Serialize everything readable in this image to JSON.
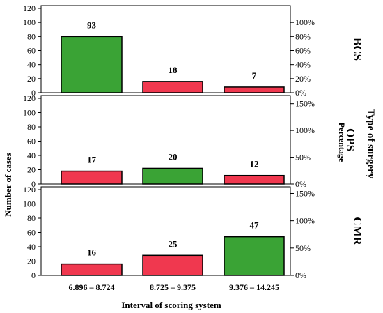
{
  "chart_data": {
    "type": "bar",
    "xlabel": "Interval of scoring system",
    "ylabel": "Number of cases",
    "y2label": "Percentage",
    "facet_label": "Type of surgery",
    "categories": [
      "6.896 – 8.724",
      "8.725 – 9.375",
      "9.376 – 14.245"
    ],
    "ylim": [
      0,
      120
    ],
    "yticks": [
      "0",
      "20",
      "40",
      "60",
      "80",
      "100",
      "120"
    ],
    "colors": {
      "highest": "#3aa335",
      "other": "#f0384f"
    },
    "panels": [
      {
        "name": "BCS",
        "values": [
          93,
          18,
          7
        ],
        "bar_values": [
          80,
          16,
          8
        ],
        "highlight": [
          true,
          false,
          false
        ],
        "y2ticks": [
          "0%",
          "20%",
          "40%",
          "60%",
          "80%",
          "100%"
        ],
        "y2max_pct": 120
      },
      {
        "name": "OPS",
        "values": [
          17,
          20,
          12
        ],
        "bar_values": [
          18,
          22,
          12
        ],
        "highlight": [
          false,
          true,
          false
        ],
        "y2ticks": [
          "0%",
          "50%",
          "100%",
          "150%"
        ],
        "y2max_pct": 160
      },
      {
        "name": "CMR",
        "values": [
          16,
          25,
          47
        ],
        "bar_values": [
          16,
          28,
          54
        ],
        "highlight": [
          false,
          false,
          true
        ],
        "y2ticks": [
          "0%",
          "50%",
          "100%",
          "150%"
        ],
        "y2max_pct": 157
      }
    ]
  }
}
